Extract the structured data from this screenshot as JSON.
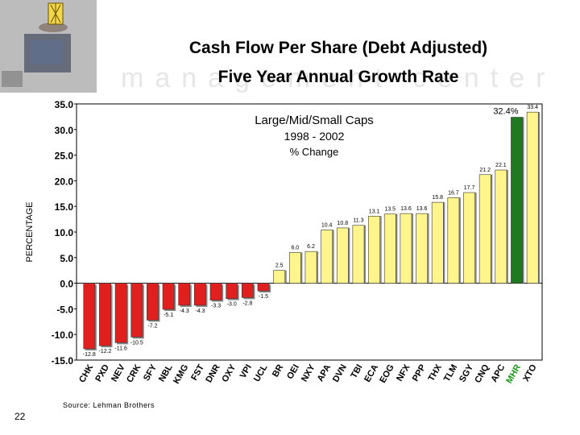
{
  "slide": {
    "title_line1": "Cash Flow Per Share (Debt Adjusted)",
    "title_line2": "Five Year Annual Growth Rate",
    "page_number": "22",
    "source": "Source:  Lehman Brothers"
  },
  "chart_data": {
    "type": "bar",
    "title_lines": [
      "Large/Mid/Small Caps",
      "1998 - 2002",
      "% Change"
    ],
    "ylabel": "PERCENTAGE",
    "ylim": [
      -15,
      35
    ],
    "yticks": [
      "35.0",
      "30.0",
      "25.0",
      "20.0",
      "15.0",
      "10.0",
      "5.0",
      "0.0",
      "-5.0",
      "-10.0",
      "-15.0"
    ],
    "grid": false,
    "callout": "32.4%",
    "categories": [
      "CHK",
      "PXD",
      "NEV",
      "CRK",
      "SFY",
      "NBL",
      "KMG",
      "FST",
      "DNR",
      "OXY",
      "VPI",
      "UCL",
      "BR",
      "OEI",
      "NXY",
      "APA",
      "DVN",
      "TBI",
      "ECA",
      "EOG",
      "NFX",
      "PPP",
      "THX",
      "TLM",
      "SGY",
      "CNQ",
      "APC",
      "MHR",
      "XTO"
    ],
    "values": [
      -12.8,
      -12.2,
      -11.6,
      -10.5,
      -7.2,
      -5.1,
      -4.3,
      -4.3,
      -3.3,
      -3.0,
      -2.8,
      -1.5,
      2.5,
      6.0,
      6.2,
      10.4,
      10.8,
      11.3,
      13.1,
      13.5,
      13.6,
      13.6,
      15.8,
      16.7,
      17.7,
      21.2,
      22.1,
      32.4,
      33.4
    ],
    "data_labels": [
      "-12.8",
      "-12.2",
      "-11.6",
      "-10.5",
      "-7.2",
      "-5.1",
      "-4.3",
      "-4.3",
      "-3.3",
      "-3.0",
      "-2.8",
      "-1.5",
      "2.5",
      "6.0",
      "6.2",
      "10.4",
      "10.8",
      "11.3",
      "13.1",
      "13.5",
      "13.6",
      "13.6",
      "15.8",
      "16.7",
      "17.7",
      "21.2",
      "22.1",
      "",
      "33.4"
    ],
    "colors": {
      "negative": "#e0201f",
      "positive": "#fff58c",
      "highlight": "#1f7a1f",
      "highlight_label": "#1a9a1a"
    },
    "highlight_category": "MHR"
  }
}
